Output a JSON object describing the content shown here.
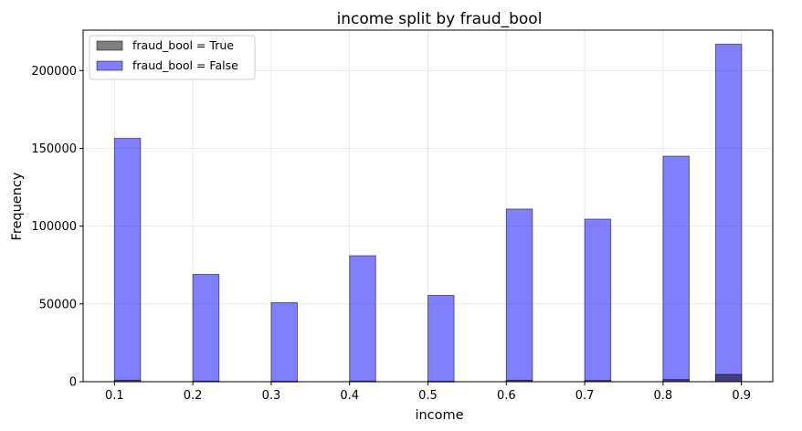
{
  "chart_data": {
    "type": "bar",
    "title": "income split by fraud_bool",
    "xlabel": "income",
    "ylabel": "Frequency",
    "xlim": [
      0.06,
      0.94
    ],
    "ylim": [
      0,
      226000
    ],
    "bin_width": 0.0333,
    "xticks": [
      0.1,
      0.2,
      0.3,
      0.4,
      0.5,
      0.6,
      0.7,
      0.8,
      0.9
    ],
    "xtick_labels": [
      "0.1",
      "0.2",
      "0.3",
      "0.4",
      "0.5",
      "0.6",
      "0.7",
      "0.8",
      "0.9"
    ],
    "yticks": [
      0,
      50000,
      100000,
      150000,
      200000
    ],
    "ytick_labels": [
      "0",
      "50000",
      "100000",
      "150000",
      "200000"
    ],
    "grid": true,
    "legend_position": "top-left",
    "series": [
      {
        "name": "fraud_bool = True",
        "color": "#000000",
        "bin_starts": [
          0.1,
          0.2,
          0.3,
          0.4,
          0.5,
          0.6,
          0.7,
          0.8,
          0.867
        ],
        "values": [
          900,
          400,
          300,
          400,
          300,
          900,
          800,
          1400,
          4700
        ]
      },
      {
        "name": "fraud_bool = False",
        "color": "#0000ff",
        "bin_starts": [
          0.1,
          0.2,
          0.3,
          0.4,
          0.5,
          0.6,
          0.7,
          0.8,
          0.867
        ],
        "values": [
          156500,
          69000,
          50800,
          81000,
          55500,
          111000,
          104500,
          145000,
          217000
        ]
      }
    ]
  }
}
